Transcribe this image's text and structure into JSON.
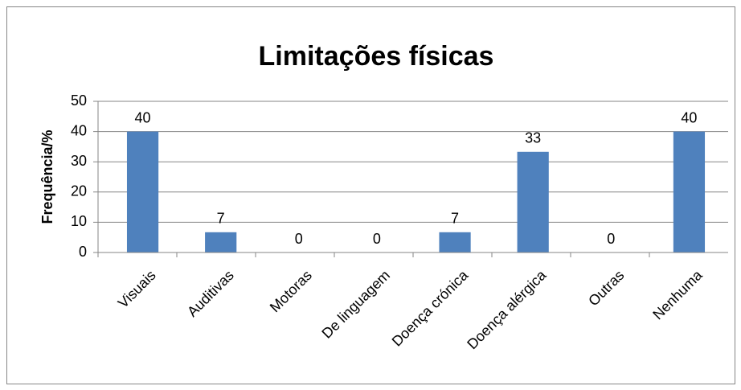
{
  "chart_data": {
    "type": "bar",
    "title": "Limitações físicas",
    "y_label": "Frequência/%",
    "categories": [
      "Visuais",
      "Auditivas",
      "Motoras",
      "De linguagem",
      "Doença crónica",
      "Doença alérgica",
      "Outras",
      "Nenhuma"
    ],
    "values": [
      40,
      6.7,
      0,
      0,
      6.7,
      33.3,
      0,
      40
    ],
    "value_labels": [
      "40",
      "7",
      "0",
      "0",
      "7",
      "33",
      "0",
      "40"
    ],
    "color": "#4f81bd",
    "ylim": [
      0,
      50
    ],
    "yticks": [
      0,
      10,
      20,
      30,
      40,
      50
    ],
    "grid": true
  }
}
